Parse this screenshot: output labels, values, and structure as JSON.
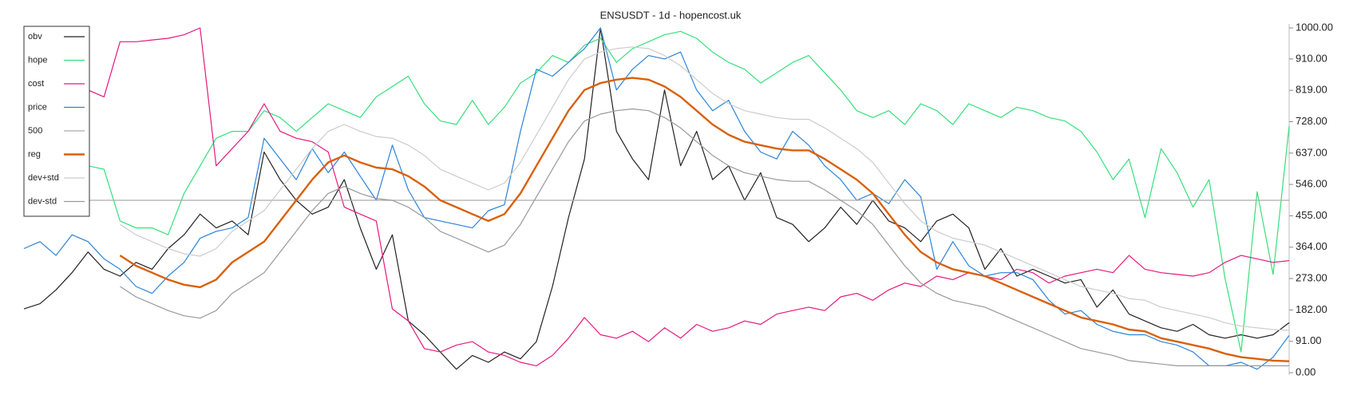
{
  "chart_data": {
    "type": "line",
    "title": "ENSUSDT - 1d - hopencost.uk",
    "ylim": [
      0,
      1000
    ],
    "yticks": [
      {
        "value": 0,
        "label": "0.00"
      },
      {
        "value": 91,
        "label": "91.00"
      },
      {
        "value": 182,
        "label": "182.00"
      },
      {
        "value": 273,
        "label": "273.00"
      },
      {
        "value": 364,
        "label": "364.00"
      },
      {
        "value": 455,
        "label": "455.00"
      },
      {
        "value": 546,
        "label": "546.00"
      },
      {
        "value": 637,
        "label": "637.00"
      },
      {
        "value": 728,
        "label": "728.00"
      },
      {
        "value": 819,
        "label": "819.00"
      },
      {
        "value": 910,
        "label": "910.00"
      },
      {
        "value": 1000,
        "label": "1000.00"
      }
    ],
    "legend": "top-left",
    "series": [
      {
        "name": "obv",
        "color": "#222222",
        "values": [
          185,
          200,
          240,
          290,
          350,
          300,
          280,
          320,
          300,
          360,
          400,
          460,
          420,
          440,
          400,
          640,
          560,
          500,
          460,
          480,
          560,
          420,
          300,
          400,
          150,
          110,
          60,
          10,
          50,
          30,
          60,
          40,
          90,
          250,
          450,
          620,
          1000,
          700,
          620,
          560,
          820,
          600,
          700,
          560,
          600,
          500,
          580,
          450,
          430,
          380,
          420,
          480,
          430,
          500,
          440,
          420,
          380,
          440,
          460,
          420,
          300,
          360,
          280,
          300,
          280,
          260,
          270,
          190,
          240,
          170,
          150,
          130,
          120,
          140,
          110,
          100,
          110,
          100,
          110,
          145
        ]
      },
      {
        "name": "hope",
        "color": "#35e07b",
        "values": [
          null,
          null,
          null,
          null,
          600,
          590,
          440,
          420,
          420,
          400,
          520,
          600,
          680,
          700,
          700,
          760,
          740,
          700,
          740,
          780,
          760,
          740,
          800,
          830,
          860,
          780,
          730,
          720,
          790,
          720,
          770,
          840,
          870,
          920,
          900,
          950,
          970,
          900,
          940,
          960,
          980,
          990,
          970,
          930,
          900,
          880,
          840,
          870,
          900,
          920,
          870,
          820,
          760,
          740,
          760,
          720,
          780,
          760,
          720,
          780,
          760,
          740,
          770,
          760,
          740,
          730,
          700,
          640,
          560,
          620,
          450,
          650,
          580,
          480,
          560,
          273,
          60,
          525,
          285,
          715
        ]
      },
      {
        "name": "cost",
        "color": "#e6197f",
        "values": [
          null,
          null,
          null,
          null,
          820,
          800,
          960,
          960,
          965,
          970,
          980,
          1000,
          600,
          650,
          700,
          780,
          700,
          680,
          670,
          640,
          480,
          460,
          440,
          185,
          150,
          70,
          60,
          80,
          90,
          60,
          50,
          30,
          20,
          50,
          100,
          160,
          110,
          100,
          120,
          90,
          130,
          100,
          140,
          120,
          130,
          150,
          140,
          170,
          180,
          190,
          180,
          220,
          230,
          210,
          240,
          260,
          250,
          280,
          270,
          290,
          280,
          270,
          300,
          290,
          260,
          280,
          290,
          300,
          290,
          340,
          300,
          290,
          285,
          280,
          290,
          320,
          340,
          330,
          320,
          325
        ]
      },
      {
        "name": "price",
        "color": "#2b83d9",
        "values": [
          360,
          380,
          340,
          400,
          380,
          330,
          300,
          250,
          230,
          280,
          320,
          390,
          410,
          420,
          450,
          680,
          620,
          560,
          650,
          580,
          640,
          570,
          500,
          660,
          530,
          450,
          440,
          430,
          420,
          470,
          487,
          700,
          880,
          860,
          900,
          940,
          1000,
          820,
          880,
          920,
          910,
          930,
          820,
          760,
          790,
          700,
          640,
          620,
          700,
          660,
          600,
          560,
          500,
          520,
          490,
          560,
          510,
          300,
          380,
          310,
          280,
          290,
          290,
          270,
          210,
          170,
          180,
          140,
          120,
          110,
          110,
          90,
          80,
          60,
          20,
          20,
          30,
          10,
          45,
          108
        ]
      },
      {
        "name": "500",
        "color": "#aaaaaa",
        "values": [
          500,
          500,
          500,
          500,
          500,
          500,
          500,
          500,
          500,
          500,
          500,
          500,
          500,
          500,
          500,
          500,
          500,
          500,
          500,
          500,
          500,
          500,
          500,
          500,
          500,
          500,
          500,
          500,
          500,
          500,
          500,
          500,
          500,
          500,
          500,
          500,
          500,
          500,
          500,
          500,
          500,
          500,
          500,
          500,
          500,
          500,
          500,
          500,
          500,
          500,
          500,
          500,
          500,
          500,
          500,
          500,
          500,
          500,
          500,
          500,
          500,
          500,
          500,
          500,
          500,
          500,
          500,
          500,
          500,
          500,
          500,
          500,
          500,
          500,
          500,
          500,
          500,
          500,
          500,
          500
        ]
      },
      {
        "name": "reg",
        "color": "#d9600b",
        "values": [
          null,
          null,
          null,
          null,
          null,
          null,
          340,
          310,
          290,
          270,
          255,
          248,
          270,
          320,
          350,
          380,
          440,
          500,
          560,
          610,
          630,
          610,
          595,
          590,
          570,
          540,
          500,
          480,
          460,
          440,
          460,
          520,
          600,
          680,
          760,
          820,
          840,
          850,
          855,
          850,
          830,
          800,
          760,
          720,
          690,
          670,
          660,
          650,
          645,
          645,
          620,
          590,
          560,
          520,
          460,
          400,
          350,
          320,
          300,
          290,
          280,
          260,
          240,
          220,
          200,
          180,
          160,
          150,
          140,
          125,
          120,
          100,
          90,
          80,
          70,
          55,
          45,
          40,
          35,
          33
        ]
      },
      {
        "name": "dev+std",
        "color": "#cccccc",
        "values": [
          null,
          null,
          null,
          null,
          null,
          null,
          430,
          400,
          380,
          360,
          345,
          338,
          360,
          410,
          440,
          470,
          530,
          590,
          650,
          700,
          720,
          700,
          685,
          680,
          660,
          630,
          590,
          570,
          550,
          530,
          550,
          610,
          690,
          770,
          850,
          910,
          930,
          940,
          945,
          940,
          920,
          890,
          850,
          810,
          780,
          760,
          750,
          740,
          735,
          735,
          710,
          680,
          650,
          610,
          550,
          490,
          440,
          410,
          390,
          380,
          370,
          350,
          330,
          310,
          290,
          270,
          250,
          240,
          230,
          215,
          210,
          190,
          180,
          170,
          160,
          145,
          135,
          130,
          125,
          123
        ]
      },
      {
        "name": "dev-std",
        "color": "#999999",
        "values": [
          null,
          null,
          null,
          null,
          null,
          null,
          250,
          220,
          200,
          180,
          165,
          158,
          180,
          230,
          260,
          290,
          350,
          410,
          470,
          520,
          540,
          520,
          505,
          500,
          480,
          450,
          410,
          390,
          370,
          350,
          370,
          430,
          510,
          590,
          670,
          730,
          750,
          760,
          765,
          760,
          740,
          710,
          670,
          630,
          600,
          580,
          570,
          560,
          555,
          555,
          530,
          500,
          470,
          430,
          370,
          310,
          260,
          230,
          210,
          200,
          190,
          170,
          150,
          130,
          110,
          90,
          70,
          60,
          50,
          35,
          30,
          25,
          20,
          20,
          20,
          20,
          20,
          20,
          20,
          20
        ]
      }
    ]
  }
}
